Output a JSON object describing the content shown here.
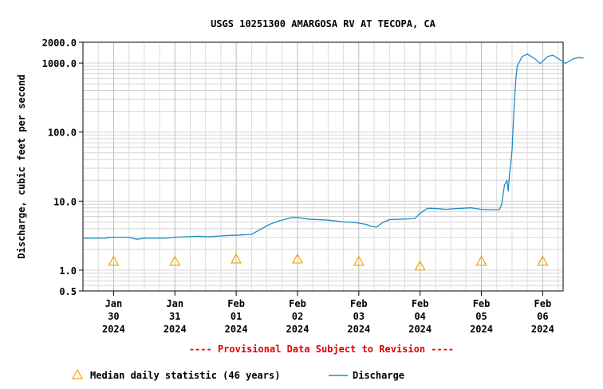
{
  "chart_data": {
    "type": "line",
    "title": "USGS 10251300 AMARGOSA RV AT TECOPA, CA",
    "ylabel": "Discharge, cubic feet per second",
    "xlabel": "",
    "yscale": "log",
    "ylim": [
      0.5,
      2000.0
    ],
    "yticks": [
      {
        "value": 0.5,
        "label": "0.5"
      },
      {
        "value": 1.0,
        "label": "1.0"
      },
      {
        "value": 10.0,
        "label": "10.0"
      },
      {
        "value": 100.0,
        "label": "100.0"
      },
      {
        "value": 1000.0,
        "label": "1000.0"
      },
      {
        "value": 2000.0,
        "label": "2000.0"
      }
    ],
    "xlim": [
      "2024-01-29T12:00",
      "2024-02-06T08:00"
    ],
    "xticks": [
      {
        "x": "2024-01-30T00:00",
        "label": [
          "Jan",
          "30",
          "2024"
        ]
      },
      {
        "x": "2024-01-31T00:00",
        "label": [
          "Jan",
          "31",
          "2024"
        ]
      },
      {
        "x": "2024-02-01T00:00",
        "label": [
          "Feb",
          "01",
          "2024"
        ]
      },
      {
        "x": "2024-02-02T00:00",
        "label": [
          "Feb",
          "02",
          "2024"
        ]
      },
      {
        "x": "2024-02-03T00:00",
        "label": [
          "Feb",
          "03",
          "2024"
        ]
      },
      {
        "x": "2024-02-04T00:00",
        "label": [
          "Feb",
          "04",
          "2024"
        ]
      },
      {
        "x": "2024-02-05T00:00",
        "label": [
          "Feb",
          "05",
          "2024"
        ]
      },
      {
        "x": "2024-02-06T00:00",
        "label": [
          "Feb",
          "06",
          "2024"
        ]
      }
    ],
    "grid": true,
    "series": [
      {
        "name": "Discharge",
        "color": "#1f8bc4",
        "marker": "line",
        "points": [
          [
            "2024-01-29T12:00",
            2.9
          ],
          [
            "2024-01-29T21:00",
            2.9
          ],
          [
            "2024-01-29T22:00",
            3.0
          ],
          [
            "2024-01-30T06:00",
            3.0
          ],
          [
            "2024-01-30T09:00",
            2.8
          ],
          [
            "2024-01-30T12:00",
            2.9
          ],
          [
            "2024-01-30T20:00",
            2.9
          ],
          [
            "2024-01-31T00:00",
            3.0
          ],
          [
            "2024-01-31T09:00",
            3.1
          ],
          [
            "2024-01-31T13:00",
            3.05
          ],
          [
            "2024-01-31T16:00",
            3.1
          ],
          [
            "2024-01-31T22:00",
            3.2
          ],
          [
            "2024-02-01T00:00",
            3.2
          ],
          [
            "2024-02-01T06:00",
            3.3
          ],
          [
            "2024-02-01T09:00",
            3.8
          ],
          [
            "2024-02-01T13:00",
            4.6
          ],
          [
            "2024-02-01T17:00",
            5.2
          ],
          [
            "2024-02-01T22:00",
            5.8
          ],
          [
            "2024-02-02T00:00",
            5.8
          ],
          [
            "2024-02-02T04:00",
            5.5
          ],
          [
            "2024-02-02T12:00",
            5.3
          ],
          [
            "2024-02-02T18:00",
            5.0
          ],
          [
            "2024-02-02T22:00",
            4.9
          ],
          [
            "2024-02-03T00:00",
            4.8
          ],
          [
            "2024-02-03T03:00",
            4.6
          ],
          [
            "2024-02-03T05:00",
            4.3
          ],
          [
            "2024-02-03T07:00",
            4.2
          ],
          [
            "2024-02-03T09:00",
            4.8
          ],
          [
            "2024-02-03T12:00",
            5.4
          ],
          [
            "2024-02-03T18:00",
            5.5
          ],
          [
            "2024-02-03T22:00",
            5.6
          ],
          [
            "2024-02-04T00:00",
            6.7
          ],
          [
            "2024-02-04T03:00",
            7.9
          ],
          [
            "2024-02-04T07:00",
            7.8
          ],
          [
            "2024-02-04T10:00",
            7.6
          ],
          [
            "2024-02-04T14:00",
            7.8
          ],
          [
            "2024-02-04T20:00",
            8.0
          ],
          [
            "2024-02-05T00:00",
            7.6
          ],
          [
            "2024-02-05T04:00",
            7.5
          ],
          [
            "2024-02-05T07:00",
            7.5
          ],
          [
            "2024-02-05T08:00",
            9.0
          ],
          [
            "2024-02-05T09:00",
            17.0
          ],
          [
            "2024-02-05T10:00",
            20.0
          ],
          [
            "2024-02-05T10:30",
            14.0
          ],
          [
            "2024-02-05T11:00",
            25.0
          ],
          [
            "2024-02-05T11:30",
            35.0
          ],
          [
            "2024-02-05T12:00",
            55.0
          ],
          [
            "2024-02-05T12:30",
            140.0
          ],
          [
            "2024-02-05T13:00",
            320.0
          ],
          [
            "2024-02-05T13:30",
            600.0
          ],
          [
            "2024-02-05T14:00",
            900.0
          ],
          [
            "2024-02-05T16:00",
            1250.0
          ],
          [
            "2024-02-05T18:00",
            1350.0
          ],
          [
            "2024-02-05T21:00",
            1150.0
          ],
          [
            "2024-02-05T23:00",
            980.0
          ],
          [
            "2024-02-06T02:00",
            1250.0
          ],
          [
            "2024-02-06T04:00",
            1300.0
          ],
          [
            "2024-02-06T07:00",
            1100.0
          ],
          [
            "2024-02-06T09:00",
            990.0
          ],
          [
            "2024-02-06T12:00",
            1150.0
          ],
          [
            "2024-02-06T14:00",
            1200.0
          ],
          [
            "2024-02-06T16:00",
            1180.0
          ]
        ]
      },
      {
        "name": "Median daily statistic (46 years)",
        "color": "#f0a500",
        "marker": "triangle",
        "points": [
          [
            "2024-01-30T00:00",
            1.35
          ],
          [
            "2024-01-31T00:00",
            1.35
          ],
          [
            "2024-02-01T00:00",
            1.45
          ],
          [
            "2024-02-02T00:00",
            1.45
          ],
          [
            "2024-02-03T00:00",
            1.35
          ],
          [
            "2024-02-04T00:00",
            1.15
          ],
          [
            "2024-02-05T00:00",
            1.35
          ],
          [
            "2024-02-06T00:00",
            1.35
          ]
        ]
      }
    ],
    "annotation": "---- Provisional Data Subject to Revision ----",
    "legend": {
      "placement": "bottom-left",
      "entries": [
        "Median daily statistic (46 years)",
        "Discharge"
      ]
    }
  }
}
